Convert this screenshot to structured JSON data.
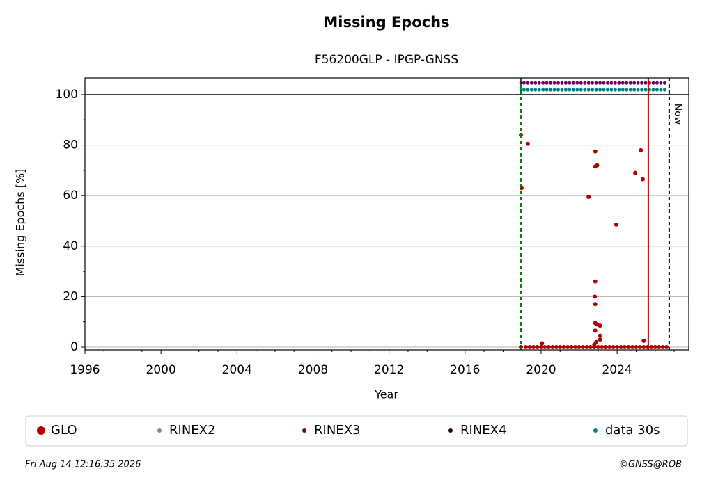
{
  "chart_data": {
    "type": "scatter",
    "title": "Missing Epochs",
    "subtitle": "F56200GLP - IPGP-GNSS",
    "x_label": "Year",
    "y_label": "Missing Epochs [%]",
    "xlim": [
      1996,
      2027.77
    ],
    "ylim": [
      -1.1,
      106.6
    ],
    "xticks": [
      1996,
      2000,
      2004,
      2008,
      2012,
      2016,
      2020,
      2024
    ],
    "xminorticks": [
      1997,
      1998,
      1999,
      2001,
      2002,
      2003,
      2005,
      2006,
      2007,
      2009,
      2010,
      2011,
      2013,
      2014,
      2015,
      2017,
      2018,
      2019,
      2021,
      2022,
      2023,
      2025,
      2026,
      2027
    ],
    "yticks": [
      0,
      20,
      40,
      60,
      80,
      100
    ],
    "yminorticks": [
      10,
      30,
      50,
      70,
      90
    ],
    "grid": true,
    "hlines": [
      {
        "y": 100,
        "color": "#000000"
      }
    ],
    "vlines": [
      {
        "x": 2018.94,
        "color": "#008000",
        "style": "dashed"
      },
      {
        "x": 2025.64,
        "color": "#b00000",
        "style": "solid"
      },
      {
        "x": 2026.74,
        "color": "#000000",
        "style": "dashed",
        "label": "Now"
      }
    ],
    "series": [
      {
        "name": "GLO",
        "color": "#b00000",
        "x": [
          2018.94,
          2018.97,
          2019.3,
          2018.94,
          2020.05,
          2022.5,
          2022.85,
          2022.85,
          2022.95,
          2022.85,
          2022.83,
          2022.85,
          2022.85,
          2022.95,
          2023.1,
          2022.85,
          2023.1,
          2023.1,
          2022.9,
          2022.8,
          2023.95,
          2024.95,
          2025.25,
          2025.35,
          2025.4,
          2019.2,
          2019.4,
          2019.6,
          2019.8,
          2020.0,
          2020.2,
          2020.4,
          2020.6,
          2020.8,
          2021.0,
          2021.2,
          2021.4,
          2021.6,
          2021.8,
          2022.0,
          2022.2,
          2022.4,
          2022.6,
          2022.8,
          2023.0,
          2023.2,
          2023.4,
          2023.6,
          2023.8,
          2024.0,
          2024.2,
          2024.4,
          2024.6,
          2024.8,
          2025.0,
          2025.2,
          2025.4,
          2025.6,
          2025.8,
          2026.0,
          2026.2,
          2026.4,
          2026.6
        ],
        "values": [
          84,
          63,
          80.5,
          0,
          1.5,
          59.5,
          77.5,
          71.5,
          72,
          26,
          20,
          17,
          9.5,
          9,
          8.5,
          6.5,
          4.5,
          3,
          2,
          1,
          48.5,
          69,
          78,
          66.5,
          2.5,
          0,
          0,
          0,
          0,
          0,
          0,
          0,
          0,
          0,
          0,
          0,
          0,
          0,
          0,
          0,
          0,
          0,
          0,
          0,
          0,
          0,
          0,
          0,
          0,
          0,
          0,
          0,
          0,
          0,
          0,
          0,
          0,
          0,
          0,
          0,
          0,
          0,
          0
        ]
      },
      {
        "name": "RINEX2",
        "color": "#8080c0",
        "x": [],
        "values": []
      },
      {
        "name": "RINEX3",
        "color": "#6a0060",
        "x": [
          2018.94,
          2019.1,
          2019.3,
          2019.5,
          2019.7,
          2019.9,
          2020.1,
          2020.3,
          2020.5,
          2020.7,
          2020.9,
          2021.1,
          2021.3,
          2021.5,
          2021.7,
          2021.9,
          2022.1,
          2022.3,
          2022.5,
          2022.7,
          2022.9,
          2023.1,
          2023.3,
          2023.5,
          2023.7,
          2023.9,
          2024.1,
          2024.3,
          2024.5,
          2024.7,
          2024.9,
          2025.1,
          2025.3,
          2025.5,
          2025.7,
          2025.9,
          2026.1,
          2026.3,
          2026.5
        ],
        "values": [
          104.6,
          104.6,
          104.6,
          104.6,
          104.6,
          104.6,
          104.6,
          104.6,
          104.6,
          104.6,
          104.6,
          104.6,
          104.6,
          104.6,
          104.6,
          104.6,
          104.6,
          104.6,
          104.6,
          104.6,
          104.6,
          104.6,
          104.6,
          104.6,
          104.6,
          104.6,
          104.6,
          104.6,
          104.6,
          104.6,
          104.6,
          104.6,
          104.6,
          104.6,
          104.6,
          104.6,
          104.6,
          104.6,
          104.6
        ]
      },
      {
        "name": "RINEX4",
        "color": "#1a0020",
        "x": [],
        "values": []
      },
      {
        "name": "data 30s",
        "color": "#008080",
        "x": [
          2018.94,
          2019.1,
          2019.3,
          2019.5,
          2019.7,
          2019.9,
          2020.1,
          2020.3,
          2020.5,
          2020.7,
          2020.9,
          2021.1,
          2021.3,
          2021.5,
          2021.7,
          2021.9,
          2022.1,
          2022.3,
          2022.5,
          2022.7,
          2022.9,
          2023.1,
          2023.3,
          2023.5,
          2023.7,
          2023.9,
          2024.1,
          2024.3,
          2024.5,
          2024.7,
          2024.9,
          2025.1,
          2025.3,
          2025.5,
          2025.7,
          2025.9,
          2026.1,
          2026.3,
          2026.5
        ],
        "values": [
          101.9,
          101.9,
          101.9,
          101.9,
          101.9,
          101.9,
          101.9,
          101.9,
          101.9,
          101.9,
          101.9,
          101.9,
          101.9,
          101.9,
          101.9,
          101.9,
          101.9,
          101.9,
          101.9,
          101.9,
          101.9,
          101.9,
          101.9,
          101.9,
          101.9,
          101.9,
          101.9,
          101.9,
          101.9,
          101.9,
          101.9,
          101.9,
          101.9,
          101.9,
          101.9,
          101.9,
          101.9,
          101.9,
          101.9
        ]
      }
    ],
    "footer_left": "Fri Aug 14 12:16:35 2026",
    "footer_right": "©GNSS@ROB"
  }
}
